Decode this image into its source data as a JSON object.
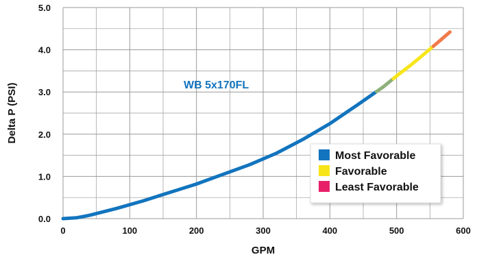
{
  "chart_data": {
    "type": "line",
    "xlabel": "GPM",
    "ylabel": "Delta P (PSI)",
    "xlim": [
      0,
      600
    ],
    "ylim": [
      0,
      5
    ],
    "x_ticks": [
      "0",
      "100",
      "200",
      "300",
      "400",
      "500",
      "600"
    ],
    "y_ticks": [
      "0.0",
      "1.0",
      "2.0",
      "3.0",
      "4.0",
      "5.0"
    ],
    "grid": true,
    "annotation": "WB 5x170FL",
    "legend_position": "bottom-right",
    "legend": [
      {
        "label": "Most Favorable",
        "color": "#1274be"
      },
      {
        "label": "Favorable",
        "color": "#f7e51a"
      },
      {
        "label": "Least Favorable",
        "color": "#e8206a"
      }
    ],
    "series": [
      {
        "x": [
          0,
          20,
          40,
          80,
          120,
          160,
          200,
          240,
          280,
          320,
          360,
          400,
          440,
          480,
          500,
          520,
          540,
          560,
          580
        ],
        "y": [
          0.0,
          0.02,
          0.08,
          0.24,
          0.42,
          0.62,
          0.82,
          1.05,
          1.28,
          1.55,
          1.88,
          2.25,
          2.68,
          3.12,
          3.38,
          3.62,
          3.88,
          4.15,
          4.42
        ],
        "segment_colors": [
          {
            "from": 0,
            "to": 470,
            "color": "#1274be"
          },
          {
            "from": 470,
            "to": 495,
            "color": "#8fb07a"
          },
          {
            "from": 495,
            "to": 555,
            "color": "#f7e51a"
          },
          {
            "from": 555,
            "to": 580,
            "color": "#f07a4a"
          }
        ]
      }
    ]
  }
}
